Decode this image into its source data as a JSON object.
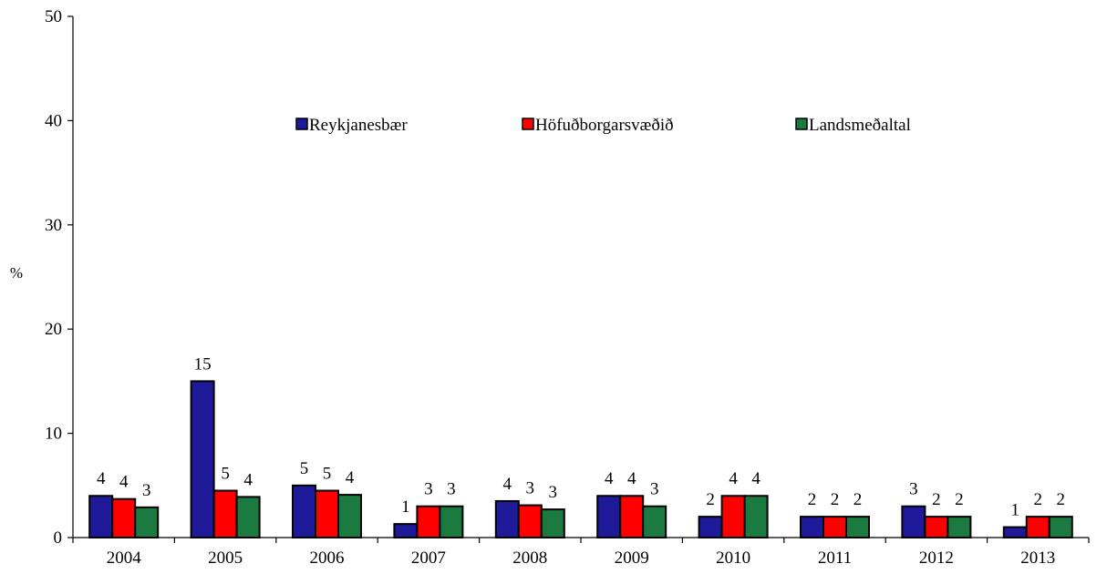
{
  "chart_data": {
    "type": "bar",
    "title": "",
    "xlabel": "",
    "ylabel": "%",
    "ylim": [
      0,
      50
    ],
    "yticks": [
      0,
      10,
      20,
      30,
      40,
      50
    ],
    "grid": false,
    "legend_position": "top-center",
    "categories": [
      "2004",
      "2005",
      "2006",
      "2007",
      "2008",
      "2009",
      "2010",
      "2011",
      "2012",
      "2013"
    ],
    "series": [
      {
        "name": "Reykjanesbær",
        "color": "#1f1a99",
        "values": [
          4.0,
          15.0,
          5.0,
          1.3,
          3.5,
          4.0,
          2.0,
          2.0,
          3.0,
          1.0
        ],
        "labels": [
          "4",
          "15",
          "5",
          "1",
          "4",
          "4",
          "2",
          "2",
          "3",
          "1"
        ]
      },
      {
        "name": "Höfuðborgarsvæðið",
        "color": "#ff0000",
        "values": [
          3.7,
          4.5,
          4.5,
          3.0,
          3.1,
          4.0,
          4.0,
          2.0,
          2.0,
          2.0
        ],
        "labels": [
          "4",
          "5",
          "5",
          "3",
          "3",
          "4",
          "4",
          "2",
          "2",
          "2"
        ]
      },
      {
        "name": "Landsmeðaltal",
        "color": "#1a7a40",
        "values": [
          2.9,
          3.9,
          4.1,
          3.0,
          2.7,
          3.0,
          4.0,
          2.0,
          2.0,
          2.0
        ],
        "labels": [
          "3",
          "4",
          "4",
          "3",
          "3",
          "3",
          "4",
          "2",
          "2",
          "2"
        ]
      }
    ]
  }
}
